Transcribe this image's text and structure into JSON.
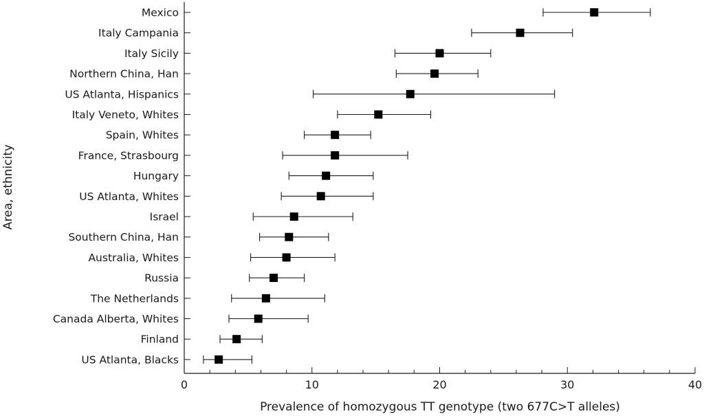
{
  "chart_data": {
    "type": "scatter",
    "xlabel": "Prevalence of homozygous TT genotype (two 677C>T alleles)",
    "ylabel": "Area, ethnicity",
    "xlim": [
      0,
      40
    ],
    "x_major_ticks": [
      0,
      10,
      20,
      30,
      40
    ],
    "x_minor_step": 2,
    "grid": false,
    "legend": "none",
    "marker": "square",
    "error_bars": true,
    "points": [
      {
        "label": "Mexico",
        "value": 32.1,
        "lower": 28.1,
        "upper": 36.5
      },
      {
        "label": "Italy Campania",
        "value": 26.3,
        "lower": 22.5,
        "upper": 30.4
      },
      {
        "label": "Italy Sicily",
        "value": 20.0,
        "lower": 16.5,
        "upper": 24.0
      },
      {
        "label": "Northern China, Han",
        "value": 19.6,
        "lower": 16.6,
        "upper": 23.0
      },
      {
        "label": "US Atlanta, Hispanics",
        "value": 17.7,
        "lower": 10.1,
        "upper": 29.0
      },
      {
        "label": "Italy Veneto, Whites",
        "value": 15.2,
        "lower": 12.0,
        "upper": 19.3
      },
      {
        "label": "Spain, Whites",
        "value": 11.8,
        "lower": 9.4,
        "upper": 14.6
      },
      {
        "label": "France, Strasbourg",
        "value": 11.8,
        "lower": 7.7,
        "upper": 17.5
      },
      {
        "label": "Hungary",
        "value": 11.1,
        "lower": 8.2,
        "upper": 14.8
      },
      {
        "label": "US Atlanta, Whites",
        "value": 10.7,
        "lower": 7.6,
        "upper": 14.8
      },
      {
        "label": "Israel",
        "value": 8.6,
        "lower": 5.4,
        "upper": 13.2
      },
      {
        "label": "Southern China, Han",
        "value": 8.2,
        "lower": 5.9,
        "upper": 11.3
      },
      {
        "label": "Australia, Whites",
        "value": 8.0,
        "lower": 5.2,
        "upper": 11.8
      },
      {
        "label": "Russia",
        "value": 7.0,
        "lower": 5.1,
        "upper": 9.4
      },
      {
        "label": "The Netherlands",
        "value": 6.4,
        "lower": 3.7,
        "upper": 11.0
      },
      {
        "label": "Canada Alberta, Whites",
        "value": 5.8,
        "lower": 3.5,
        "upper": 9.7
      },
      {
        "label": "Finland",
        "value": 4.1,
        "lower": 2.8,
        "upper": 6.1
      },
      {
        "label": "US Atlanta, Blacks",
        "value": 2.7,
        "lower": 1.5,
        "upper": 5.3
      }
    ]
  }
}
